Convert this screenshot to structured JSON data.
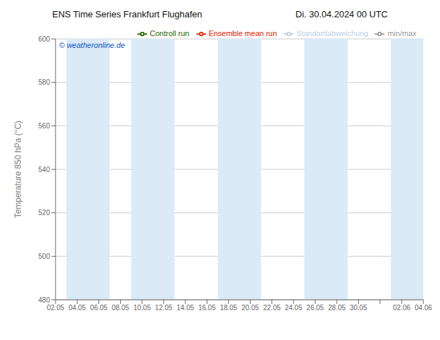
{
  "chart_data": {
    "type": "line",
    "title": "ENS Time Series Frankfurt Flughafen",
    "subtitle": "Di. 30.04.2024 00 UTC",
    "ylabel": "Temperature 850 hPa (°C)",
    "categories": [
      "02.05",
      "04.05",
      "06.05",
      "08.05",
      "10.05",
      "12.05",
      "14.05",
      "16.05",
      "18.05",
      "20.05",
      "22.05",
      "24.05",
      "26.05",
      "28.05",
      "30.05",
      null,
      "02.06",
      "04.06"
    ],
    "series": [
      {
        "name": "min/max",
        "color": "#999999",
        "values": [
          null,
          null,
          null,
          null,
          null,
          null,
          null,
          null,
          null,
          null,
          null,
          null,
          null,
          null,
          null,
          null,
          null,
          null
        ]
      },
      {
        "name": "Standardabweichung",
        "color": "#b8d0e8",
        "values": [
          null,
          null,
          null,
          null,
          null,
          null,
          null,
          null,
          null,
          null,
          null,
          null,
          null,
          null,
          null,
          null,
          null,
          null
        ]
      },
      {
        "name": "Ensemble mean run",
        "color": "#dd2200",
        "values": [
          null,
          null,
          null,
          null,
          null,
          null,
          null,
          null,
          null,
          null,
          null,
          null,
          null,
          null,
          null,
          null,
          null,
          null
        ]
      },
      {
        "name": "Controll run",
        "color": "#226600",
        "values": [
          null,
          null,
          null,
          null,
          null,
          null,
          null,
          null,
          null,
          null,
          null,
          null,
          null,
          null,
          null,
          null,
          null,
          null
        ]
      }
    ],
    "shaded_ranges": [
      [
        "04.05",
        "06.05"
      ],
      [
        "10.05",
        "12.05"
      ],
      [
        "18.05",
        "20.05"
      ],
      [
        "26.05",
        "28.05"
      ],
      [
        "02.06",
        "04.06"
      ]
    ],
    "shaded_color": "#daeaf7",
    "annotations": [
      {
        "text": "© weatheronline.de",
        "color": "#1155cc"
      }
    ],
    "ylim": [
      480,
      600
    ],
    "yticks": [
      480,
      500,
      520,
      540,
      560,
      580,
      600
    ],
    "grid": true,
    "legend": "upper right"
  }
}
